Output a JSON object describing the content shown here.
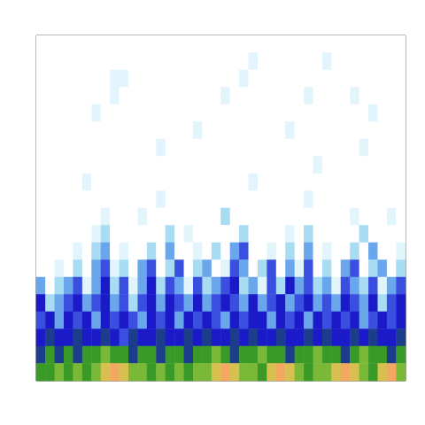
{
  "chart_data": {
    "type": "heatmap",
    "tick_labels": false,
    "grid": false,
    "value_range": [
      0,
      10
    ],
    "cells": [
      [
        0,
        0,
        0,
        0,
        0,
        0,
        0,
        0,
        0,
        0,
        0,
        0,
        0,
        0,
        0,
        0,
        0,
        0,
        0,
        0,
        0,
        0,
        0,
        0,
        0,
        0,
        0,
        0,
        0,
        0,
        0,
        0,
        0,
        0,
        0,
        0,
        0,
        0,
        0,
        0
      ],
      [
        0,
        0,
        0,
        0,
        0,
        0,
        0,
        0,
        0,
        0,
        0,
        0,
        0,
        0,
        0,
        0,
        0,
        0,
        0,
        0,
        0,
        0,
        0,
        1,
        0,
        0,
        0,
        0,
        0,
        0,
        0,
        1,
        0,
        0,
        0,
        0,
        0,
        0,
        0,
        0
      ],
      [
        0,
        0,
        0,
        0,
        0,
        0,
        0,
        0,
        1,
        1,
        0,
        0,
        0,
        0,
        0,
        0,
        0,
        0,
        0,
        0,
        0,
        0,
        1,
        0,
        0,
        0,
        0,
        0,
        0,
        0,
        0,
        0,
        0,
        0,
        0,
        0,
        0,
        0,
        0,
        0
      ],
      [
        0,
        0,
        0,
        0,
        0,
        0,
        0,
        0,
        1,
        0,
        0,
        0,
        0,
        0,
        0,
        0,
        0,
        0,
        0,
        0,
        1,
        0,
        0,
        0,
        0,
        0,
        0,
        0,
        0,
        1,
        0,
        0,
        0,
        0,
        1,
        0,
        0,
        0,
        0,
        0
      ],
      [
        0,
        0,
        0,
        0,
        0,
        0,
        1,
        0,
        0,
        0,
        0,
        0,
        0,
        0,
        0,
        0,
        0,
        0,
        0,
        0,
        0,
        0,
        0,
        0,
        0,
        0,
        0,
        0,
        0,
        0,
        0,
        0,
        0,
        0,
        0,
        0,
        1,
        0,
        0,
        0
      ],
      [
        0,
        0,
        0,
        0,
        0,
        0,
        0,
        0,
        0,
        0,
        0,
        0,
        0,
        0,
        0,
        0,
        0,
        1,
        0,
        0,
        0,
        0,
        0,
        0,
        0,
        0,
        0,
        1,
        0,
        0,
        0,
        0,
        0,
        0,
        0,
        0,
        0,
        0,
        0,
        0
      ],
      [
        0,
        0,
        0,
        0,
        0,
        0,
        0,
        0,
        0,
        0,
        0,
        0,
        0,
        1,
        0,
        0,
        0,
        0,
        0,
        0,
        0,
        0,
        0,
        0,
        0,
        0,
        0,
        0,
        0,
        0,
        0,
        0,
        0,
        0,
        0,
        1,
        0,
        0,
        0,
        0
      ],
      [
        0,
        0,
        0,
        0,
        0,
        0,
        0,
        0,
        0,
        0,
        0,
        0,
        0,
        0,
        0,
        0,
        0,
        0,
        0,
        0,
        0,
        0,
        0,
        0,
        0,
        0,
        0,
        0,
        0,
        0,
        1,
        0,
        0,
        0,
        0,
        0,
        0,
        0,
        0,
        0
      ],
      [
        0,
        0,
        0,
        0,
        0,
        1,
        0,
        0,
        0,
        0,
        0,
        0,
        0,
        0,
        0,
        0,
        0,
        0,
        0,
        0,
        0,
        0,
        0,
        1,
        0,
        0,
        0,
        0,
        0,
        0,
        0,
        0,
        0,
        0,
        0,
        0,
        0,
        0,
        0,
        0
      ],
      [
        0,
        0,
        0,
        0,
        0,
        0,
        0,
        0,
        0,
        0,
        0,
        0,
        0,
        1,
        0,
        0,
        0,
        0,
        0,
        0,
        0,
        0,
        0,
        0,
        0,
        0,
        0,
        0,
        0,
        1,
        0,
        0,
        0,
        0,
        0,
        0,
        0,
        0,
        0,
        0
      ],
      [
        0,
        0,
        0,
        0,
        0,
        0,
        0,
        1,
        0,
        0,
        0,
        1,
        0,
        0,
        0,
        0,
        0,
        0,
        0,
        0,
        2,
        0,
        0,
        0,
        0,
        0,
        0,
        0,
        0,
        0,
        0,
        0,
        0,
        0,
        1,
        0,
        0,
        0,
        1,
        0
      ],
      [
        0,
        0,
        0,
        0,
        0,
        0,
        1,
        2,
        0,
        0,
        0,
        0,
        0,
        0,
        2,
        0,
        1,
        0,
        0,
        0,
        0,
        0,
        2,
        0,
        0,
        0,
        0,
        1,
        0,
        2,
        0,
        0,
        0,
        0,
        0,
        2,
        0,
        0,
        0,
        0
      ],
      [
        0,
        0,
        0,
        0,
        1,
        0,
        2,
        3,
        0,
        1,
        0,
        0,
        2,
        0,
        3,
        0,
        0,
        1,
        0,
        2,
        0,
        3,
        4,
        0,
        0,
        1,
        0,
        2,
        0,
        3,
        0,
        1,
        0,
        0,
        2,
        0,
        3,
        0,
        0,
        1
      ],
      [
        0,
        0,
        1,
        0,
        2,
        0,
        3,
        4,
        1,
        2,
        0,
        3,
        4,
        0,
        2,
        4,
        0,
        2,
        3,
        0,
        1,
        4,
        3,
        0,
        2,
        4,
        0,
        3,
        1,
        4,
        0,
        2,
        0,
        3,
        4,
        0,
        2,
        3,
        0,
        2
      ],
      [
        3,
        0,
        2,
        3,
        4,
        1,
        3,
        5,
        2,
        4,
        1,
        3,
        5,
        2,
        4,
        3,
        1,
        4,
        2,
        3,
        4,
        5,
        2,
        3,
        1,
        4,
        2,
        5,
        3,
        4,
        2,
        3,
        1,
        4,
        3,
        2,
        4,
        1,
        3,
        4
      ],
      [
        5,
        2,
        3,
        4,
        5,
        3,
        4,
        5,
        3,
        4,
        2,
        4,
        5,
        3,
        5,
        4,
        3,
        5,
        3,
        4,
        5,
        4,
        3,
        5,
        3,
        4,
        5,
        3,
        4,
        5,
        3,
        4,
        3,
        5,
        4,
        3,
        5,
        2,
        4,
        5
      ],
      [
        4,
        5,
        3,
        5,
        4,
        5,
        3,
        5,
        4,
        5,
        4,
        3,
        5,
        4,
        5,
        3,
        5,
        4,
        5,
        4,
        3,
        5,
        4,
        5,
        5,
        3,
        5,
        4,
        5,
        3,
        5,
        4,
        5,
        4,
        5,
        3,
        4,
        5,
        4,
        5
      ],
      [
        5,
        6,
        5,
        5,
        6,
        5,
        5,
        6,
        5,
        4,
        6,
        5,
        5,
        6,
        5,
        5,
        6,
        5,
        6,
        5,
        5,
        6,
        5,
        6,
        5,
        5,
        6,
        5,
        5,
        6,
        5,
        6,
        5,
        5,
        6,
        5,
        6,
        5,
        5,
        6
      ],
      [
        6,
        7,
        6,
        7,
        6,
        7,
        7,
        8,
        7,
        7,
        6,
        7,
        7,
        6,
        7,
        7,
        6,
        7,
        7,
        8,
        7,
        6,
        7,
        7,
        8,
        7,
        7,
        6,
        7,
        7,
        8,
        7,
        7,
        6,
        7,
        8,
        7,
        7,
        6,
        7
      ],
      [
        7,
        7,
        8,
        7,
        8,
        7,
        8,
        9,
        10,
        9,
        8,
        8,
        7,
        8,
        7,
        8,
        7,
        8,
        8,
        9,
        10,
        9,
        8,
        8,
        7,
        9,
        10,
        9,
        8,
        7,
        8,
        8,
        9,
        10,
        9,
        8,
        7,
        9,
        10,
        8
      ]
    ]
  }
}
